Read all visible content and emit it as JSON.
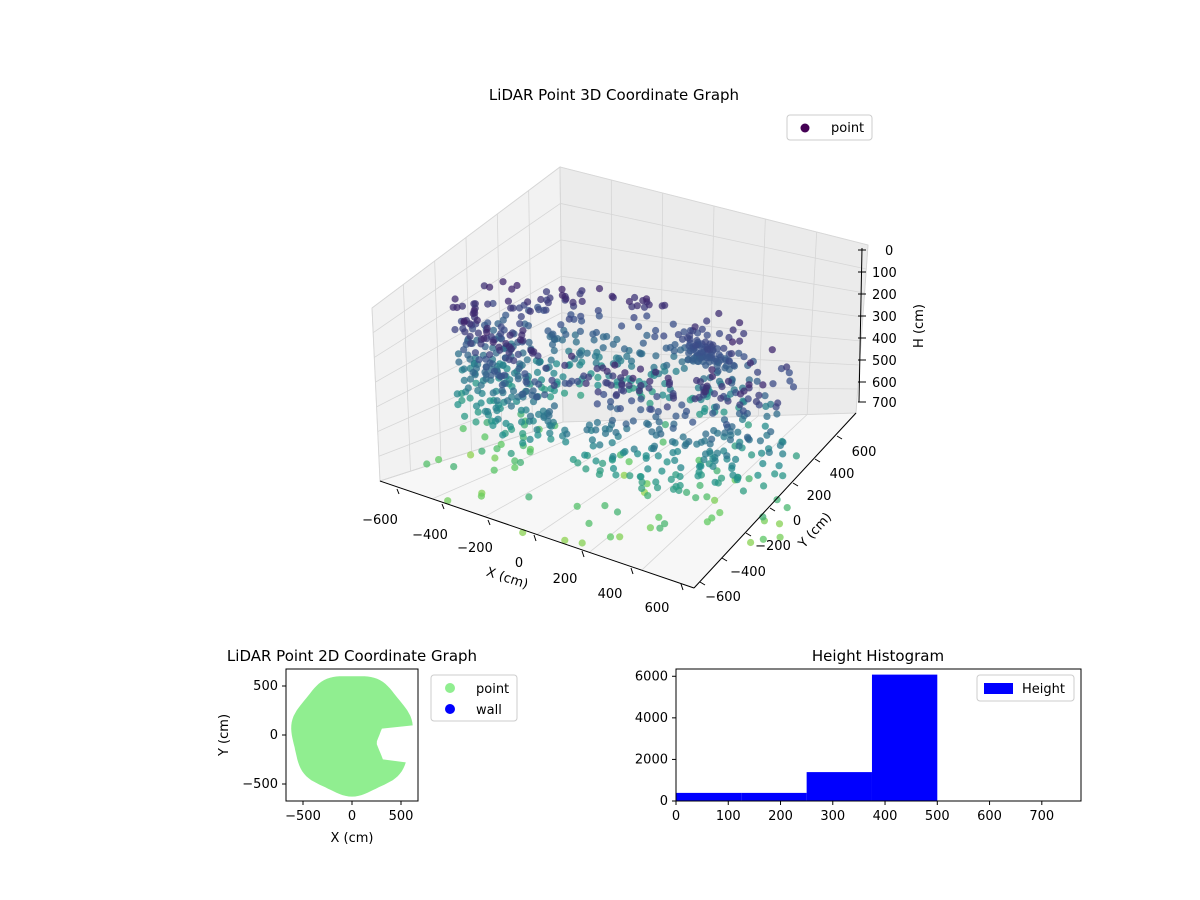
{
  "chart_data": [
    {
      "type": "scatter",
      "projection": "3d",
      "title": "LiDAR Point 3D Coordinate Graph",
      "xlabel": "X (cm)",
      "ylabel": "Y (cm)",
      "zlabel": "H (cm)",
      "xticks": [
        "−600",
        "−400",
        "−200",
        "0",
        "200",
        "400",
        "600"
      ],
      "yticks": [
        "−600",
        "−400",
        "−200",
        "0",
        "200",
        "400",
        "600"
      ],
      "zticks": [
        "0",
        "100",
        "200",
        "300",
        "400",
        "500",
        "600",
        "700"
      ],
      "xlim": [
        -650,
        650
      ],
      "ylim": [
        -650,
        650
      ],
      "zlim": [
        0,
        750
      ],
      "z_inverted": true,
      "grid": true,
      "legend": {
        "position": "top-right",
        "entries": [
          {
            "name": "point",
            "color": "#440154"
          }
        ]
      },
      "colormap": "viridis",
      "series": [
        {
          "name": "point",
          "shape": "ring-with-opening",
          "ring_radius_range": [
            380,
            620
          ],
          "height_range": [
            100,
            500
          ],
          "opening_angle_deg": [
            -10,
            70
          ],
          "dense_cluster": {
            "x": 80,
            "y": 430,
            "h": 230
          },
          "sparse_low_points_height": [
            550,
            740
          ]
        }
      ]
    },
    {
      "type": "scatter",
      "title": "LiDAR Point 2D Coordinate Graph",
      "xlabel": "X (cm)",
      "ylabel": "Y (cm)",
      "xticks": [
        "−500",
        "0",
        "500"
      ],
      "yticks": [
        "−500",
        "0",
        "500"
      ],
      "xlim": [
        -680,
        680
      ],
      "ylim": [
        -680,
        680
      ],
      "legend": {
        "position": "outside-right",
        "entries": [
          {
            "name": "point",
            "color": "#90ee90"
          },
          {
            "name": "wall",
            "color": "#0000ff"
          }
        ]
      },
      "series": [
        {
          "name": "point",
          "color": "#90ee90",
          "shape": "filled-disc",
          "radius": 620,
          "notch": {
            "x": [
              250,
              680
            ],
            "y": [
              -260,
              90
            ]
          }
        },
        {
          "name": "wall",
          "color": "#0000ff",
          "x": [],
          "y": []
        }
      ]
    },
    {
      "type": "bar",
      "subtype": "histogram",
      "title": "Height Histogram",
      "xticks": [
        "0",
        "100",
        "200",
        "300",
        "400",
        "500",
        "600",
        "700"
      ],
      "yticks": [
        "0",
        "2000",
        "4000",
        "6000"
      ],
      "xlim": [
        0,
        775
      ],
      "ylim": [
        0,
        6350
      ],
      "color": "#0000ff",
      "legend": {
        "position": "top-right",
        "entries": [
          {
            "name": "Height",
            "color": "#0000ff"
          }
        ]
      },
      "bin_edges": [
        0,
        125,
        250,
        375,
        500,
        625,
        750
      ],
      "values": [
        390,
        390,
        1390,
        6080,
        20,
        20
      ]
    }
  ]
}
